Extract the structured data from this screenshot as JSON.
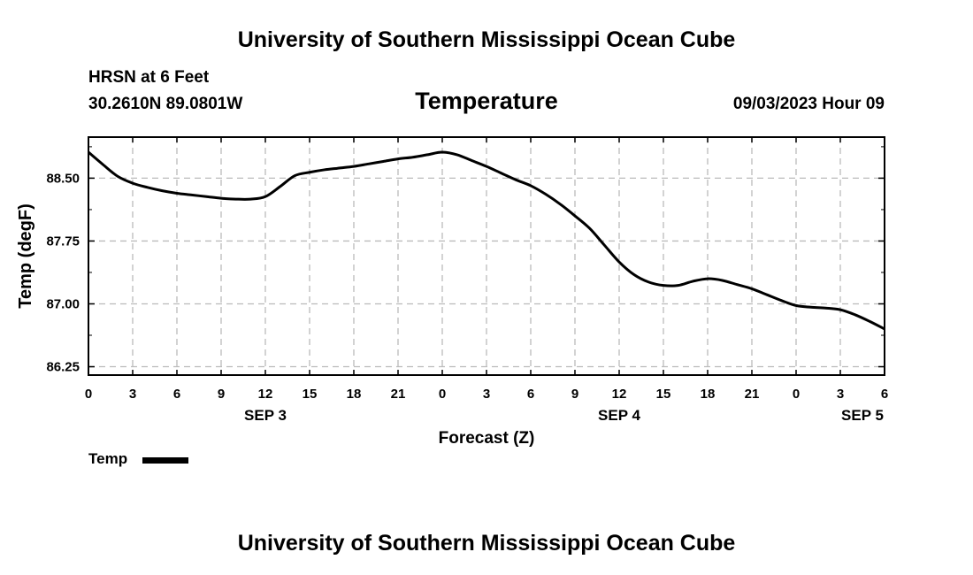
{
  "header": {
    "title": "University of Southern Mississippi Ocean Cube",
    "station": "HRSN at 6 Feet",
    "coords": "30.2610N  89.0801W",
    "chart_title": "Temperature",
    "datetime": "09/03/2023 Hour 09"
  },
  "footer": {
    "title": "University of Southern Mississippi Ocean Cube"
  },
  "legend": {
    "label": "Temp"
  },
  "colors": {
    "line": "#000000",
    "grid": "#bbbbbb",
    "background": "#ffffff"
  },
  "chart_data": {
    "type": "line",
    "title": "Temperature",
    "xlabel": "Forecast (Z)",
    "ylabel": "Temp (degF)",
    "xlim": [
      0,
      54
    ],
    "ylim": [
      86.15,
      88.99
    ],
    "x_ticks": [
      0,
      3,
      6,
      9,
      12,
      15,
      18,
      21,
      24,
      27,
      30,
      33,
      36,
      39,
      42,
      45,
      48,
      51,
      54
    ],
    "x_tick_labels": [
      "0",
      "3",
      "6",
      "9",
      "12",
      "15",
      "18",
      "21",
      "0",
      "3",
      "6",
      "9",
      "12",
      "15",
      "18",
      "21",
      "0",
      "3",
      "6"
    ],
    "y_ticks": [
      86.25,
      87.0,
      87.75,
      88.5
    ],
    "y_tick_labels": [
      "86.25",
      "87.00",
      "87.75",
      "88.50"
    ],
    "date_labels": [
      {
        "x": 12,
        "label": "SEP 3"
      },
      {
        "x": 36,
        "label": "SEP 4"
      },
      {
        "x": 52.5,
        "label": "SEP 5"
      }
    ],
    "grid": true,
    "legend": "bottom-left",
    "series": [
      {
        "name": "Temp",
        "x": [
          0,
          1,
          2,
          3,
          4,
          5,
          6,
          7,
          8,
          9,
          10,
          11,
          12,
          13,
          14,
          15,
          16,
          17,
          18,
          19,
          20,
          21,
          22,
          23,
          24,
          25,
          26,
          27,
          28,
          29,
          30,
          31,
          32,
          33,
          34,
          35,
          36,
          37,
          38,
          39,
          40,
          41,
          42,
          43,
          44,
          45,
          46,
          47,
          48,
          49,
          50,
          51,
          52,
          53,
          54
        ],
        "values": [
          88.81,
          88.66,
          88.52,
          88.44,
          88.39,
          88.35,
          88.32,
          88.3,
          88.28,
          88.26,
          88.25,
          88.25,
          88.28,
          88.4,
          88.53,
          88.57,
          88.6,
          88.62,
          88.64,
          88.67,
          88.7,
          88.73,
          88.75,
          88.78,
          88.81,
          88.78,
          88.71,
          88.64,
          88.56,
          88.48,
          88.41,
          88.31,
          88.19,
          88.05,
          87.9,
          87.7,
          87.5,
          87.35,
          87.26,
          87.22,
          87.22,
          87.27,
          87.3,
          87.28,
          87.23,
          87.18,
          87.11,
          87.04,
          86.98,
          86.96,
          86.95,
          86.93,
          86.87,
          86.79,
          86.7
        ]
      }
    ]
  }
}
